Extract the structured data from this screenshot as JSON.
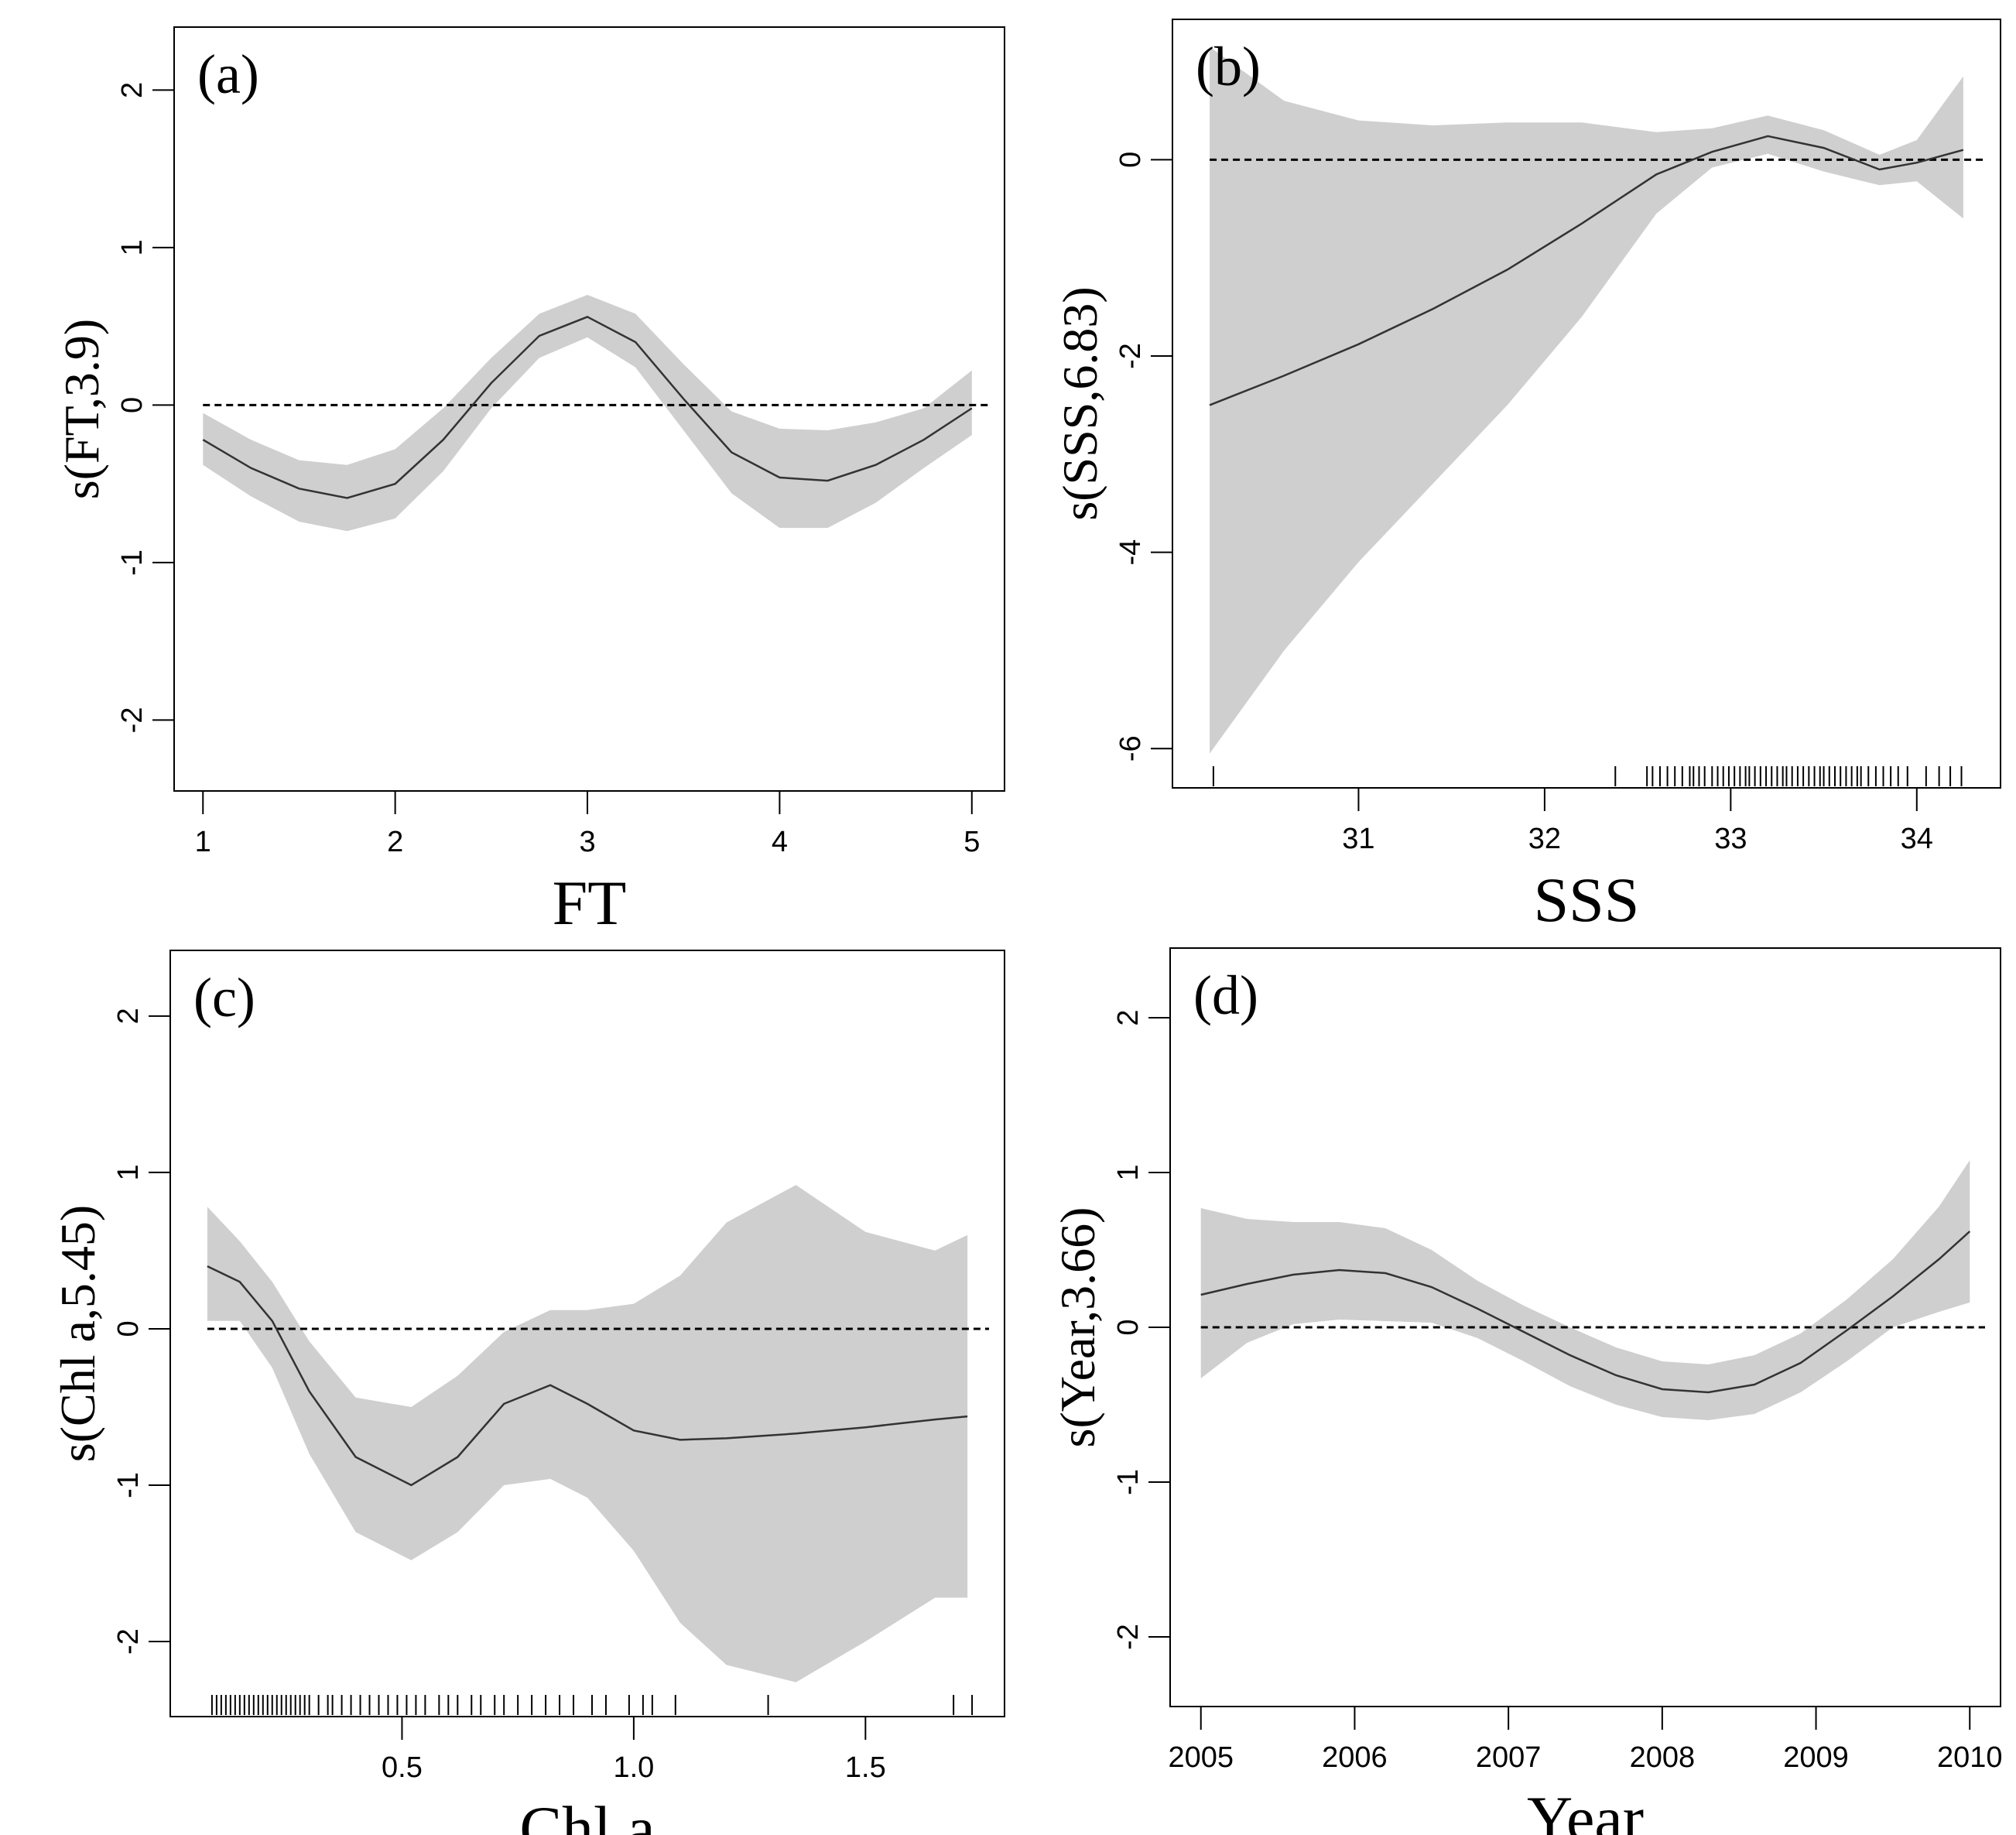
{
  "figure": {
    "colors": {
      "band": "#cfcfcf",
      "curve": "#333333",
      "axis": "#000000",
      "zero_line": "#000000"
    }
  },
  "chart_data": [
    {
      "type": "line",
      "id": "a",
      "panel_label": "(a)",
      "xlabel": "FT",
      "ylabel": "s(FT,3.9)",
      "xlim": [
        0.85,
        5.17
      ],
      "ylim": [
        -2.45,
        2.4
      ],
      "xticks": [
        1,
        2,
        3,
        4,
        5
      ],
      "xtick_labels": [
        "1",
        "2",
        "3",
        "4",
        "5"
      ],
      "yticks": [
        -2,
        -1,
        0,
        1,
        2
      ],
      "ytick_labels": [
        "-2",
        "-1",
        "0",
        "1",
        "2"
      ],
      "zero_line": true,
      "x": [
        1.0,
        1.25,
        1.5,
        1.75,
        2.0,
        2.25,
        2.5,
        2.75,
        3.0,
        3.25,
        3.5,
        3.75,
        4.0,
        4.25,
        4.5,
        4.75,
        5.0
      ],
      "fit": [
        -0.22,
        -0.4,
        -0.53,
        -0.59,
        -0.5,
        -0.22,
        0.14,
        0.44,
        0.56,
        0.4,
        0.04,
        -0.3,
        -0.46,
        -0.48,
        -0.38,
        -0.22,
        -0.02
      ],
      "lower": [
        -0.38,
        -0.58,
        -0.74,
        -0.8,
        -0.72,
        -0.42,
        -0.02,
        0.3,
        0.43,
        0.24,
        -0.16,
        -0.56,
        -0.78,
        -0.78,
        -0.62,
        -0.4,
        -0.19
      ],
      "upper": [
        -0.05,
        -0.22,
        -0.35,
        -0.38,
        -0.28,
        -0.02,
        0.3,
        0.58,
        0.7,
        0.58,
        0.26,
        -0.04,
        -0.15,
        -0.16,
        -0.11,
        -0.02,
        0.22
      ],
      "rug": []
    },
    {
      "type": "line",
      "id": "b",
      "panel_label": "(b)",
      "xlabel": "SSS",
      "ylabel": "s(SSS,6.83)",
      "xlim": [
        30.0,
        34.45
      ],
      "ylim": [
        -6.4,
        1.43
      ],
      "xticks": [
        31,
        32,
        33,
        34
      ],
      "xtick_labels": [
        "31",
        "32",
        "33",
        "34"
      ],
      "yticks": [
        -6,
        -4,
        -2,
        0
      ],
      "ytick_labels": [
        "-6",
        "-4",
        "-2",
        "0"
      ],
      "zero_line": true,
      "x": [
        30.2,
        30.6,
        31.0,
        31.4,
        31.8,
        32.2,
        32.6,
        32.9,
        33.2,
        33.5,
        33.8,
        34.0,
        34.25
      ],
      "fit": [
        -2.5,
        -2.2,
        -1.88,
        -1.52,
        -1.12,
        -0.65,
        -0.15,
        0.08,
        0.24,
        0.12,
        -0.1,
        -0.03,
        0.1
      ],
      "lower": [
        -6.05,
        -5.0,
        -4.1,
        -3.3,
        -2.5,
        -1.6,
        -0.55,
        -0.08,
        0.06,
        -0.12,
        -0.26,
        -0.22,
        -0.6
      ],
      "upper": [
        1.15,
        0.6,
        0.4,
        0.35,
        0.38,
        0.38,
        0.28,
        0.32,
        0.45,
        0.3,
        0.05,
        0.2,
        0.85
      ],
      "rug": [
        30.22,
        32.38,
        32.55,
        32.58,
        32.62,
        32.66,
        32.7,
        32.74,
        32.78,
        32.8,
        32.83,
        32.86,
        32.9,
        32.93,
        32.96,
        32.99,
        33.02,
        33.05,
        33.08,
        33.1,
        33.13,
        33.16,
        33.19,
        33.22,
        33.25,
        33.28,
        33.3,
        33.33,
        33.36,
        33.39,
        33.42,
        33.45,
        33.48,
        33.5,
        33.53,
        33.56,
        33.59,
        33.62,
        33.65,
        33.68,
        33.7,
        33.74,
        33.78,
        33.82,
        33.86,
        33.9,
        33.95,
        34.05,
        34.12,
        34.18,
        34.24
      ]
    },
    {
      "type": "line",
      "id": "c",
      "panel_label": "(c)",
      "xlabel": "Chl a",
      "ylabel": "s(Chl a,5.45)",
      "xlim": [
        0.0,
        1.8
      ],
      "ylim": [
        -2.48,
        2.42
      ],
      "xticks": [
        0.5,
        1.0,
        1.5
      ],
      "xtick_labels": [
        "0.5",
        "1.0",
        "1.5"
      ],
      "yticks": [
        -2,
        -1,
        0,
        1,
        2
      ],
      "ytick_labels": [
        "-2",
        "-1",
        "0",
        "1",
        "2"
      ],
      "zero_line": true,
      "x": [
        0.08,
        0.15,
        0.22,
        0.3,
        0.4,
        0.52,
        0.62,
        0.72,
        0.82,
        0.9,
        1.0,
        1.1,
        1.2,
        1.35,
        1.5,
        1.65,
        1.72
      ],
      "fit": [
        0.4,
        0.3,
        0.05,
        -0.4,
        -0.82,
        -1.0,
        -0.82,
        -0.48,
        -0.36,
        -0.48,
        -0.65,
        -0.71,
        -0.7,
        -0.67,
        -0.63,
        -0.58,
        -0.56
      ],
      "lower": [
        0.05,
        0.05,
        -0.25,
        -0.8,
        -1.3,
        -1.48,
        -1.3,
        -1.0,
        -0.96,
        -1.08,
        -1.42,
        -1.88,
        -2.15,
        -2.26,
        -2.0,
        -1.72,
        -1.72
      ],
      "upper": [
        0.78,
        0.56,
        0.3,
        -0.08,
        -0.44,
        -0.5,
        -0.3,
        -0.02,
        0.12,
        0.12,
        0.16,
        0.34,
        0.68,
        0.92,
        0.62,
        0.5,
        0.6
      ],
      "rug": [
        0.09,
        0.1,
        0.11,
        0.12,
        0.13,
        0.14,
        0.15,
        0.16,
        0.17,
        0.18,
        0.19,
        0.2,
        0.21,
        0.22,
        0.23,
        0.24,
        0.25,
        0.26,
        0.27,
        0.28,
        0.29,
        0.3,
        0.32,
        0.34,
        0.35,
        0.37,
        0.39,
        0.41,
        0.43,
        0.45,
        0.47,
        0.49,
        0.51,
        0.53,
        0.55,
        0.58,
        0.6,
        0.62,
        0.65,
        0.67,
        0.7,
        0.72,
        0.75,
        0.78,
        0.81,
        0.84,
        0.87,
        0.91,
        0.94,
        0.99,
        1.02,
        1.04,
        1.09,
        1.29,
        1.69,
        1.73
      ]
    },
    {
      "type": "line",
      "id": "d",
      "panel_label": "(d)",
      "xlabel": "Year",
      "ylabel": "s(Year,3.66)",
      "xlim": [
        2004.8,
        2010.2
      ],
      "ylim": [
        -2.45,
        2.45
      ],
      "xticks": [
        2005,
        2006,
        2007,
        2008,
        2009,
        2010
      ],
      "xtick_labels": [
        "2005",
        "2006",
        "2007",
        "2008",
        "2009",
        "2010"
      ],
      "yticks": [
        -2,
        -1,
        0,
        1,
        2
      ],
      "ytick_labels": [
        "-2",
        "-1",
        "0",
        "1",
        "2"
      ],
      "zero_line": true,
      "x": [
        2005.0,
        2005.3,
        2005.6,
        2005.9,
        2006.2,
        2006.5,
        2006.8,
        2007.1,
        2007.4,
        2007.7,
        2008.0,
        2008.3,
        2008.6,
        2008.9,
        2009.2,
        2009.5,
        2009.8,
        2010.0
      ],
      "fit": [
        0.21,
        0.28,
        0.34,
        0.37,
        0.35,
        0.26,
        0.12,
        -0.03,
        -0.18,
        -0.31,
        -0.4,
        -0.42,
        -0.37,
        -0.23,
        -0.02,
        0.2,
        0.44,
        0.62
      ],
      "lower": [
        -0.33,
        -0.1,
        0.02,
        0.05,
        0.04,
        0.03,
        -0.07,
        -0.22,
        -0.38,
        -0.5,
        -0.58,
        -0.6,
        -0.56,
        -0.42,
        -0.22,
        0.0,
        0.1,
        0.16
      ],
      "upper": [
        0.77,
        0.7,
        0.68,
        0.68,
        0.64,
        0.5,
        0.3,
        0.14,
        0.0,
        -0.13,
        -0.22,
        -0.24,
        -0.18,
        -0.04,
        0.18,
        0.44,
        0.78,
        1.08
      ],
      "rug": []
    }
  ]
}
